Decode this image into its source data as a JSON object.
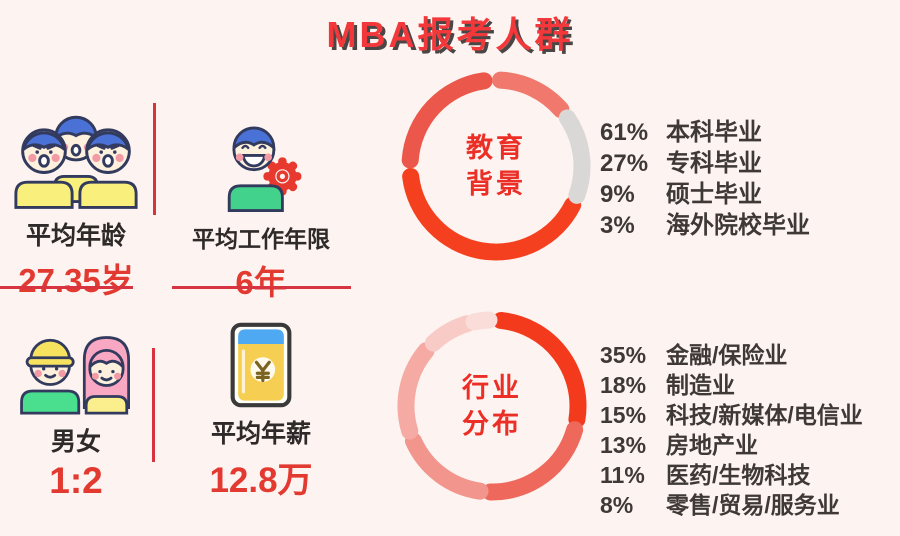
{
  "background": "#fdf3f0",
  "accent_red": "#d83440",
  "title": "MBA报考人群",
  "stats": [
    {
      "name": "average-age",
      "label": "平均年龄",
      "value": "27.35岁"
    },
    {
      "name": "average-working-years",
      "label": "平均工作年限",
      "value": "6年"
    },
    {
      "name": "male-female-ratio",
      "label": "男女",
      "value": "1:2"
    },
    {
      "name": "average-annual-salary",
      "label": "平均年薪",
      "value": "12.8万"
    }
  ],
  "icons": [
    "three-men-icon",
    "worker-gear-icon",
    "man-woman-icon",
    "passbook-yuan-icon"
  ],
  "chart_data": [
    {
      "type": "donut",
      "title": "教育背景",
      "title_lines": [
        "教育",
        "背景"
      ],
      "legend_position": "right",
      "categories": [
        "本科毕业",
        "专科毕业",
        "硕士毕业",
        "海外院校毕业"
      ],
      "values": [
        61,
        27,
        9,
        3
      ],
      "percent_labels": [
        "61%",
        "27%",
        "9%",
        "3%"
      ],
      "segments": [
        {
          "start": 117,
          "end": 263,
          "color": "#f5401f"
        },
        {
          "start": 274,
          "end": 352,
          "color": "#eb574b"
        },
        {
          "start": 3,
          "end": 49,
          "color": "#f0786c"
        },
        {
          "start": 56,
          "end": 110,
          "color": "#dad8d7"
        }
      ]
    },
    {
      "type": "donut",
      "title": "行业分布",
      "title_lines": [
        "行业",
        "分布"
      ],
      "legend_position": "right",
      "categories": [
        "金融/保险业",
        "制造业",
        "科技/新媒体/电信业",
        "房地产业",
        "医药/生物科技",
        "零售/贸易/服务业"
      ],
      "values": [
        35,
        18,
        15,
        13,
        11,
        8
      ],
      "percent_labels": [
        "35%",
        "18%",
        "15%",
        "13%",
        "11%",
        "8%"
      ],
      "segments": [
        {
          "start": 6,
          "end": 99,
          "color": "#f43a1d"
        },
        {
          "start": 106,
          "end": 181,
          "color": "#ee695b"
        },
        {
          "start": 188,
          "end": 246,
          "color": "#f2958c"
        },
        {
          "start": 253,
          "end": 310,
          "color": "#f5aaa3"
        },
        {
          "start": 317,
          "end": 343,
          "color": "#f8cbc6"
        },
        {
          "start": 348,
          "end": 358,
          "color": "#fadcd8"
        }
      ]
    }
  ]
}
